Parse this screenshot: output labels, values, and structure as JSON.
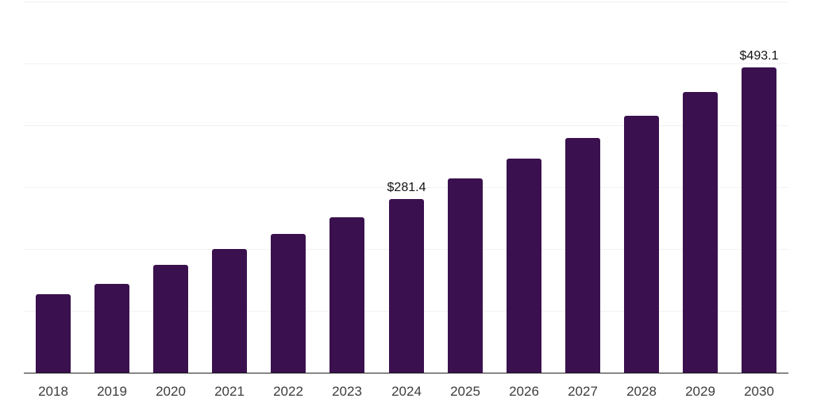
{
  "chart_data": {
    "type": "bar",
    "title": "",
    "xlabel": "",
    "ylabel": "",
    "categories": [
      "2018",
      "2019",
      "2020",
      "2021",
      "2022",
      "2023",
      "2024",
      "2025",
      "2026",
      "2027",
      "2028",
      "2029",
      "2030"
    ],
    "values": [
      127.3,
      144.0,
      174.3,
      199.9,
      224.5,
      251.9,
      281.4,
      313.6,
      345.7,
      379.8,
      416.0,
      454.3,
      493.1
    ],
    "annotations": [
      {
        "category": "2024",
        "label": "$281.4"
      },
      {
        "category": "2030",
        "label": "$493.1"
      }
    ],
    "ylim": [
      0,
      600
    ],
    "grid_step": 100,
    "grid": "horizontal",
    "legend": "none",
    "colors": {
      "bar": "#3A114E",
      "grid": "#f2f2f2",
      "axis": "#222222",
      "tick_label": "#3d3d3d",
      "annotation": "#141414",
      "background": "#ffffff"
    }
  }
}
